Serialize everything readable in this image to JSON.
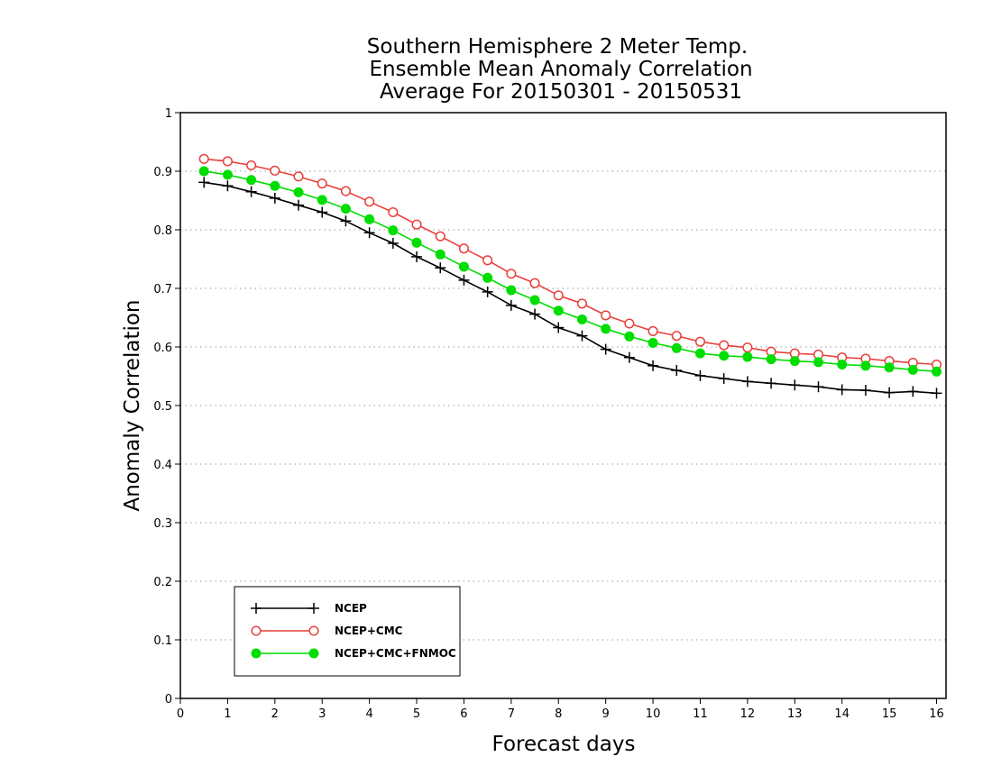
{
  "chart_data": {
    "type": "line",
    "title": [
      "Southern Hemisphere 2 Meter Temp.",
      "Ensemble Mean Anomaly Correlation",
      "Average For 20150301 - 20150531"
    ],
    "xlabel": "Forecast days",
    "ylabel": "Anomaly Correlation",
    "xlim": [
      0,
      16.2
    ],
    "ylim": [
      0,
      1
    ],
    "xticks": [
      0,
      1,
      2,
      3,
      4,
      5,
      6,
      7,
      8,
      9,
      10,
      11,
      12,
      13,
      14,
      15,
      16
    ],
    "yticks": [
      0,
      0.1,
      0.2,
      0.3,
      0.4,
      0.5,
      0.6,
      0.7,
      0.8,
      0.9,
      1
    ],
    "grid": "horizontal-dotted",
    "legend_position": "bottom-left",
    "x": [
      0.5,
      1,
      1.5,
      2,
      2.5,
      3,
      3.5,
      4,
      4.5,
      5,
      5.5,
      6,
      6.5,
      7,
      7.5,
      8,
      8.5,
      9,
      9.5,
      10,
      10.5,
      11,
      11.5,
      12,
      12.5,
      13,
      13.5,
      14,
      14.5,
      15,
      15.5,
      16
    ],
    "series": [
      {
        "name": "NCEP",
        "color": "#000000",
        "marker": "plus",
        "values": [
          0.881,
          0.875,
          0.865,
          0.854,
          0.842,
          0.83,
          0.815,
          0.795,
          0.777,
          0.754,
          0.735,
          0.714,
          0.694,
          0.671,
          0.656,
          0.633,
          0.619,
          0.596,
          0.582,
          0.568,
          0.56,
          0.551,
          0.546,
          0.541,
          0.538,
          0.535,
          0.532,
          0.527,
          0.526,
          0.522,
          0.524,
          0.521
        ]
      },
      {
        "name": "NCEP+CMC",
        "color": "#e8403a",
        "marker": "open-circle",
        "values": [
          0.921,
          0.917,
          0.91,
          0.901,
          0.891,
          0.879,
          0.866,
          0.848,
          0.83,
          0.809,
          0.789,
          0.768,
          0.748,
          0.725,
          0.709,
          0.688,
          0.674,
          0.654,
          0.64,
          0.627,
          0.619,
          0.609,
          0.603,
          0.599,
          0.592,
          0.589,
          0.587,
          0.582,
          0.58,
          0.576,
          0.573,
          0.57
        ]
      },
      {
        "name": "NCEP+CMC+FNMOC",
        "color": "#00dd00",
        "marker": "filled-circle",
        "values": [
          0.9,
          0.894,
          0.885,
          0.875,
          0.864,
          0.851,
          0.836,
          0.818,
          0.799,
          0.778,
          0.758,
          0.737,
          0.718,
          0.697,
          0.68,
          0.662,
          0.647,
          0.631,
          0.618,
          0.607,
          0.598,
          0.589,
          0.585,
          0.583,
          0.579,
          0.576,
          0.574,
          0.57,
          0.568,
          0.565,
          0.561,
          0.558
        ]
      }
    ]
  }
}
